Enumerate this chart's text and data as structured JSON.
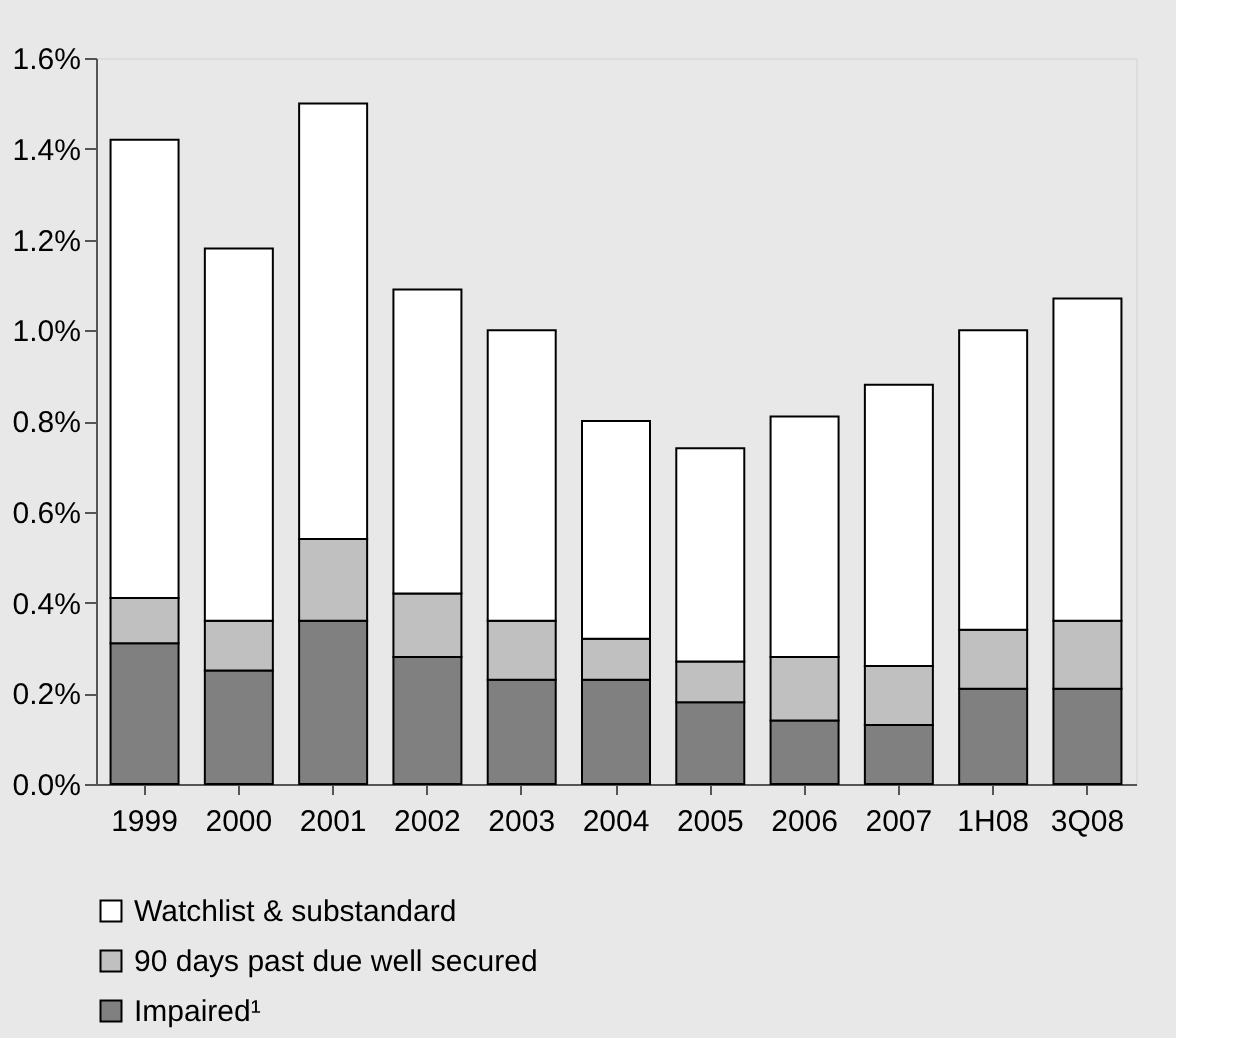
{
  "chart_data": {
    "type": "bar",
    "stacked": true,
    "categories": [
      "1999",
      "2000",
      "2001",
      "2002",
      "2003",
      "2004",
      "2005",
      "2006",
      "2007",
      "1H08",
      "3Q08"
    ],
    "series": [
      {
        "name": "Impaired¹",
        "color": "#808080",
        "values": [
          0.31,
          0.25,
          0.36,
          0.28,
          0.23,
          0.23,
          0.18,
          0.14,
          0.13,
          0.21,
          0.21
        ]
      },
      {
        "name": "90 days past due well secured",
        "color": "#c0c0c0",
        "values": [
          0.1,
          0.11,
          0.18,
          0.14,
          0.13,
          0.09,
          0.09,
          0.14,
          0.13,
          0.13,
          0.15
        ]
      },
      {
        "name": "Watchlist & substandard",
        "color": "#ffffff",
        "values": [
          1.01,
          0.82,
          0.96,
          0.67,
          0.64,
          0.48,
          0.47,
          0.53,
          0.62,
          0.66,
          0.71
        ]
      }
    ],
    "ylim": [
      0,
      1.6
    ],
    "yticks": [
      {
        "value": 0,
        "label": "0.0%"
      },
      {
        "value": 0.2,
        "label": "0.2%"
      },
      {
        "value": 0.4,
        "label": "0.4%"
      },
      {
        "value": 0.6,
        "label": "0.6%"
      },
      {
        "value": 0.8,
        "label": "0.8%"
      },
      {
        "value": 1.0,
        "label": "1.0%"
      },
      {
        "value": 1.2,
        "label": "1.2%"
      },
      {
        "value": 1.4,
        "label": "1.4%"
      },
      {
        "value": 1.6,
        "label": "1.6%"
      }
    ],
    "grid": false,
    "legend": "bottom"
  }
}
